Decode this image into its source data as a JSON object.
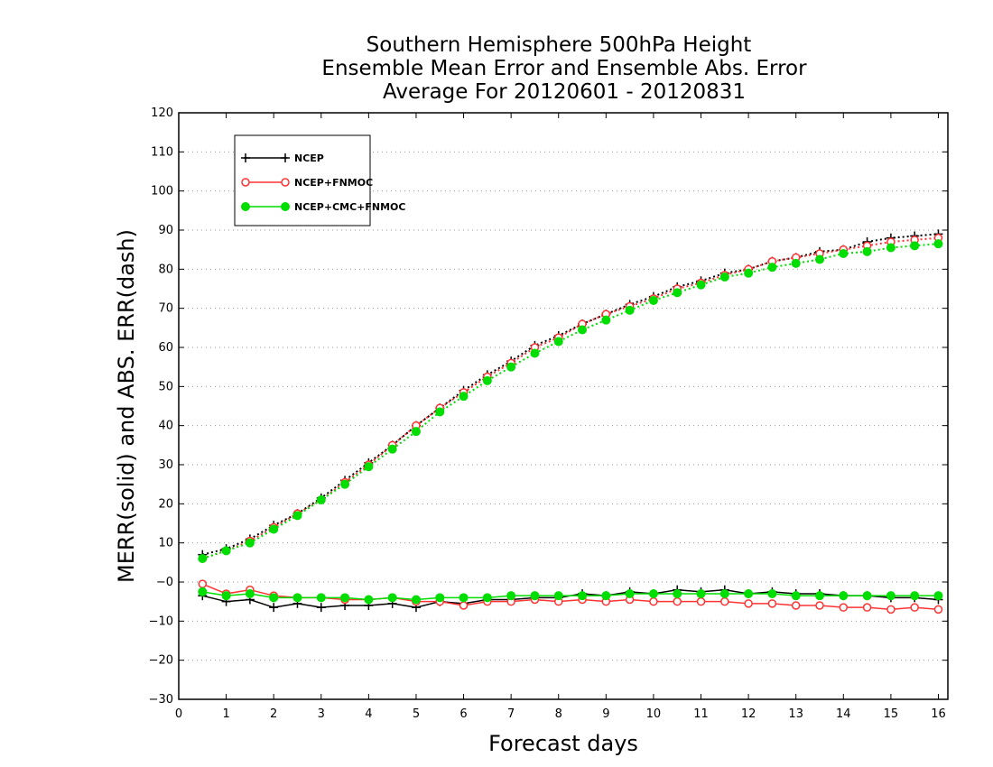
{
  "chart_data": {
    "type": "line",
    "title": "Southern Hemisphere 500hPa Height",
    "subtitle": "Ensemble Mean Error and Ensemble Abs. Error",
    "period": "Average For 20120601 - 20120831",
    "xlabel": "Forecast days",
    "ylabel": "MERR(solid) and ABS. ERR(dash)",
    "xlim": [
      0,
      16.2
    ],
    "ylim": [
      -30,
      120
    ],
    "xticks": [
      "0",
      "1",
      "2",
      "3",
      "4",
      "5",
      "6",
      "7",
      "8",
      "9",
      "10",
      "11",
      "12",
      "13",
      "14",
      "15",
      "16"
    ],
    "yticks": [
      "−30",
      "−20",
      "−10",
      "−0",
      "10",
      "20",
      "30",
      "40",
      "50",
      "60",
      "70",
      "80",
      "90",
      "100",
      "110",
      "120"
    ],
    "grid": true,
    "legend_position": "top-left",
    "x": [
      0.5,
      1,
      1.5,
      2,
      2.5,
      3,
      3.5,
      4,
      4.5,
      5,
      5.5,
      6,
      6.5,
      7,
      7.5,
      8,
      8.5,
      9,
      9.5,
      10,
      10.5,
      11,
      11.5,
      12,
      12.5,
      13,
      13.5,
      14,
      14.5,
      15,
      15.5,
      16
    ],
    "series": [
      {
        "name": "NCEP",
        "color": "#000000",
        "marker": "plus",
        "merr": [
          -3.5,
          -5,
          -4.5,
          -6.5,
          -5.5,
          -6.5,
          -6,
          -6,
          -5.5,
          -6.5,
          -5,
          -5.5,
          -4.5,
          -4.5,
          -4,
          -4,
          -3,
          -3.5,
          -2.5,
          -3,
          -2,
          -2.5,
          -2,
          -3,
          -2.5,
          -3,
          -3,
          -3.5,
          -3.5,
          -4,
          -4,
          -4.5
        ],
        "abserr": [
          7,
          8.5,
          11,
          14.5,
          17.5,
          21.5,
          26,
          30.5,
          35,
          40,
          44.5,
          49,
          53,
          56.5,
          60.5,
          63,
          66,
          68.5,
          71,
          73,
          75.5,
          77,
          79,
          80,
          82,
          83,
          84.5,
          85,
          87,
          88,
          88.5,
          89
        ]
      },
      {
        "name": "NCEP+FNMOC",
        "color": "#ff3333",
        "marker": "open-circle",
        "merr": [
          -0.5,
          -3,
          -2,
          -3.5,
          -4,
          -4,
          -4.5,
          -4.5,
          -4,
          -5,
          -5,
          -6,
          -5,
          -5,
          -4.5,
          -5,
          -4.5,
          -5,
          -4.5,
          -5,
          -5,
          -5,
          -5,
          -5.5,
          -5.5,
          -6,
          -6,
          -6.5,
          -6.5,
          -7,
          -6.5,
          -7
        ],
        "abserr": [
          6,
          8,
          10.5,
          14,
          17.5,
          21,
          25.5,
          30,
          35,
          40,
          44.5,
          48.5,
          52.5,
          56,
          60,
          62.5,
          66,
          68.5,
          70.5,
          72.5,
          75,
          76.5,
          78.5,
          80,
          82,
          83,
          84,
          85,
          86,
          87,
          87.5,
          88
        ]
      },
      {
        "name": "NCEP+CMC+FNMOC",
        "color": "#00dd00",
        "marker": "filled-circle",
        "merr": [
          -2.5,
          -3.5,
          -3,
          -4,
          -4,
          -4,
          -4,
          -4.5,
          -4,
          -4.5,
          -4,
          -4,
          -4,
          -3.5,
          -3.5,
          -3.5,
          -3.5,
          -3.5,
          -3,
          -3,
          -3,
          -3,
          -3,
          -3,
          -3,
          -3.5,
          -3.5,
          -3.5,
          -3.5,
          -3.5,
          -3.5,
          -3.5
        ],
        "abserr": [
          6,
          8,
          10,
          13.5,
          17,
          21,
          25,
          29.5,
          34,
          38.5,
          43.5,
          47.5,
          51.5,
          55,
          58.5,
          61.5,
          64.5,
          67,
          69.5,
          72,
          74,
          76,
          78,
          79,
          80.5,
          81.5,
          82.5,
          84,
          84.5,
          85.5,
          86,
          86.5
        ]
      }
    ]
  }
}
